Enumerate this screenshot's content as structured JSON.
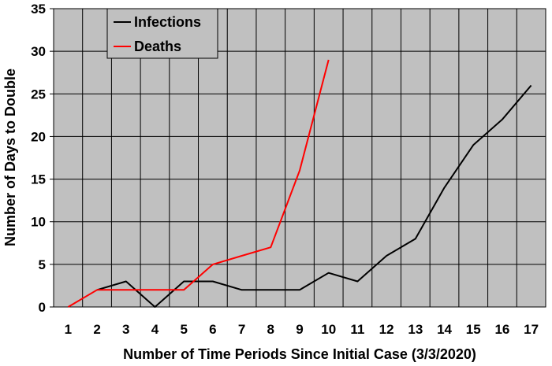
{
  "chart_data": {
    "type": "line",
    "title": "",
    "xlabel": "Number of Time Periods Since Initial Case (3/3/2020)",
    "ylabel": "Number of Days to Double",
    "x": [
      1,
      2,
      3,
      4,
      5,
      6,
      7,
      8,
      9,
      10,
      11,
      12,
      13,
      14,
      15,
      16,
      17
    ],
    "xlim": [
      0.5,
      17.5
    ],
    "ylim": [
      0,
      35
    ],
    "yticks": [
      0,
      5,
      10,
      15,
      20,
      25,
      30,
      35
    ],
    "grid": true,
    "plot_background": "#c0c0c0",
    "legend_position": "top-left",
    "series": [
      {
        "name": "Infections",
        "color": "#000000",
        "x": [
          2,
          3,
          4,
          5,
          6,
          7,
          8,
          9,
          10,
          11,
          12,
          13,
          14,
          15,
          16,
          17
        ],
        "values": [
          2,
          3,
          0,
          3,
          3,
          2,
          2,
          2,
          4,
          3,
          6,
          8,
          14,
          19,
          22,
          26
        ]
      },
      {
        "name": "Deaths",
        "color": "#ff0000",
        "x": [
          1,
          2,
          3,
          4,
          5,
          6,
          7,
          8,
          9,
          10
        ],
        "values": [
          0,
          2,
          2,
          2,
          2,
          5,
          6,
          7,
          16,
          29
        ]
      }
    ]
  }
}
